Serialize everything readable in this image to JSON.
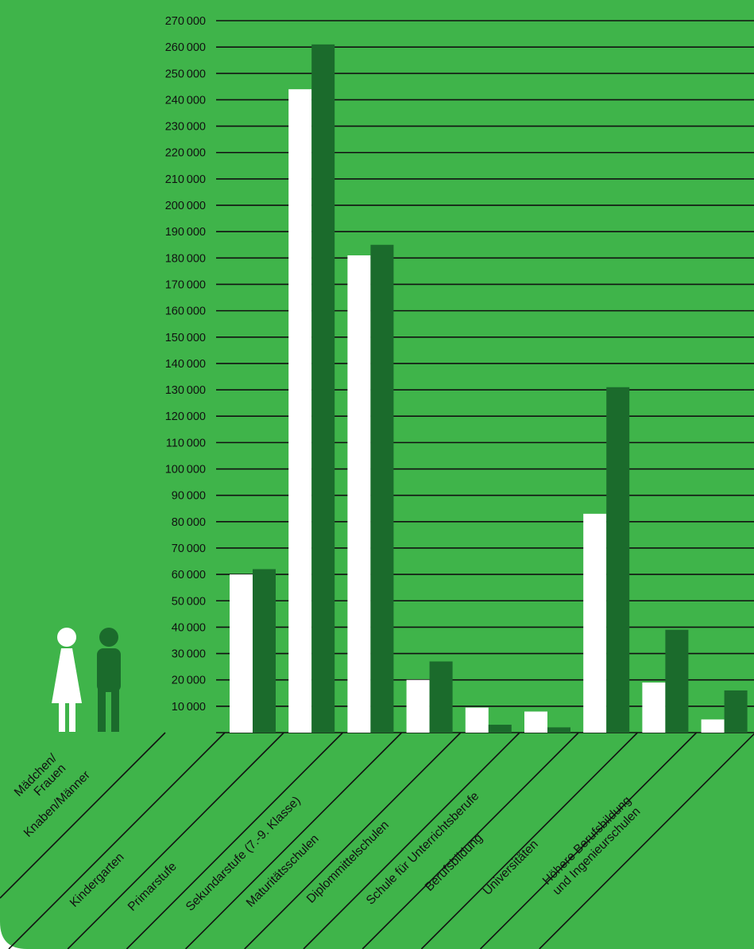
{
  "colors": {
    "background": "#3fb44a",
    "female": "#ffffff",
    "male": "#1b6b2c",
    "ink": "#111111"
  },
  "legend": {
    "female_label": [
      "Mädchen/",
      "Frauen"
    ],
    "male_label": "Knaben/Männer"
  },
  "chart_data": {
    "type": "bar",
    "ylim": [
      0,
      270000
    ],
    "y_ticks": [
      "10000",
      "20000",
      "30000",
      "40000",
      "50000",
      "60000",
      "70000",
      "80000",
      "90000",
      "100000",
      "110000",
      "120000",
      "130000",
      "140000",
      "150000",
      "160000",
      "170000",
      "180000",
      "190000",
      "200000",
      "210000",
      "220000",
      "230000",
      "240000",
      "250000",
      "260000",
      "270000"
    ],
    "categories": [
      [
        "Kindergarten"
      ],
      [
        "Primarstufe"
      ],
      [
        "Sekundarstufe (7.-9. Klasse)"
      ],
      [
        "Maturitätsschulen"
      ],
      [
        "Diplommittelschulen"
      ],
      [
        "Schule für Unterrichtsberufe"
      ],
      [
        "Berufsbildung"
      ],
      [
        "Universitäten"
      ],
      [
        "Höhere Berufsbildung",
        "und Ingenieurschulen"
      ]
    ],
    "series": [
      {
        "key": "female",
        "values": [
          60000,
          244000,
          181000,
          20000,
          9500,
          8000,
          83000,
          19000,
          5000
        ]
      },
      {
        "key": "male",
        "values": [
          62000,
          261000,
          185000,
          27000,
          3000,
          2000,
          131000,
          39000,
          16000
        ]
      }
    ]
  }
}
